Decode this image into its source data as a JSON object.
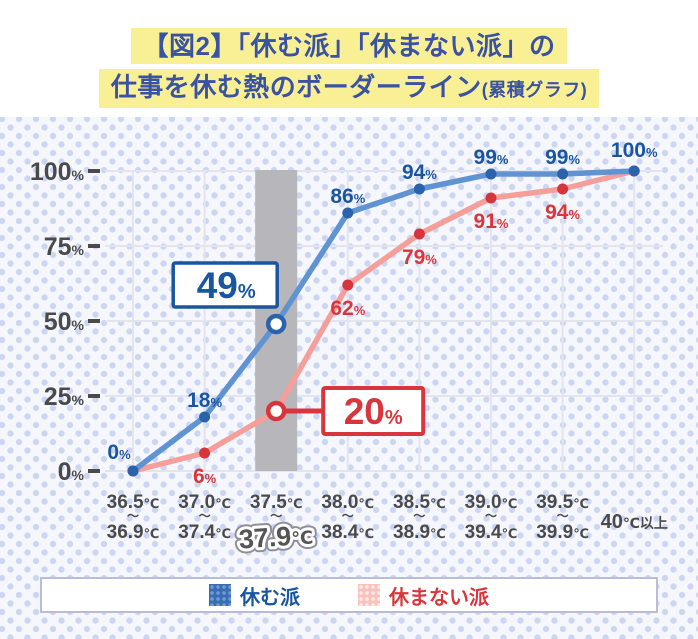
{
  "title": {
    "line1": "【図2】「休む派」「休まない派」の",
    "line2": "仕事を休む熱のボーダーライン",
    "line2_suffix": "(累積グラフ)"
  },
  "colors": {
    "page_bg": "#ffffff",
    "dotted_bg": "#f5f7fd",
    "dot_color": "#ccd6f3",
    "grid": "#e3e4ec",
    "band": "#b6b6bb",
    "axis_text": "#4a4a4a",
    "title_text": "#3a52a3",
    "title_highlight": "#f9f096",
    "big_label_text": "#555555",
    "legend_border": "#b9bdd6"
  },
  "chart_data": {
    "type": "line",
    "title": "【図2】「休む派」「休まない派」の仕事を休む熱のボーダーライン(累積グラフ)",
    "ylabel": "",
    "xlabel": "",
    "ylim": [
      0,
      100
    ],
    "y_ticks": [
      "100%",
      "75%",
      "50%",
      "25%",
      "0%"
    ],
    "range_separator": "〜",
    "categories": [
      {
        "range_top": "36.5℃",
        "range_bottom": "36.9℃"
      },
      {
        "range_top": "37.0℃",
        "range_bottom": "37.4℃"
      },
      {
        "range_top": "37.5℃",
        "range_bottom": "37.9℃",
        "highlight": true
      },
      {
        "range_top": "38.0℃",
        "range_bottom": "38.4℃"
      },
      {
        "range_top": "38.5℃",
        "range_bottom": "38.9℃"
      },
      {
        "range_top": "39.0℃",
        "range_bottom": "39.4℃"
      },
      {
        "range_top": "39.5℃",
        "range_bottom": "39.9℃"
      },
      {
        "label": "40℃以上"
      }
    ],
    "series": [
      {
        "id": "yasumu",
        "name": "休む派",
        "line_color": "#5f93d2",
        "marker_color": "#2b62ac",
        "label_color": "#1a56a0",
        "label_position": "above",
        "values": [
          0,
          18,
          49,
          86,
          94,
          99,
          99,
          100
        ],
        "labels": [
          "0%",
          "18%",
          null,
          "86%",
          "94%",
          "99%",
          "99%",
          "100%"
        ],
        "callout": {
          "index": 2,
          "value": "49%"
        }
      },
      {
        "id": "yasumanai",
        "name": "休まない派",
        "line_color": "#f59e9a",
        "marker_color": "#d6353c",
        "label_color": "#d8363c",
        "label_position": "below",
        "values": [
          0,
          6,
          20,
          62,
          79,
          91,
          94,
          100
        ],
        "labels": [
          null,
          "6%",
          null,
          "62%",
          "79%",
          "91%",
          "94%",
          null
        ],
        "callout": {
          "index": 2,
          "value": "20%"
        }
      }
    ],
    "legend": [
      {
        "label": "休む派"
      },
      {
        "label": "休まない派"
      }
    ],
    "highlight_band_range": "37.5℃〜37.9℃",
    "grid": true,
    "legend_position": "bottom"
  }
}
